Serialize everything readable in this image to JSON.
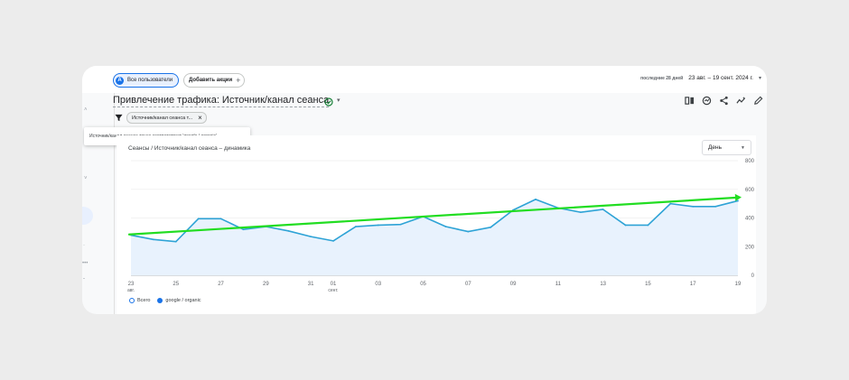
{
  "topbar": {
    "segment_badge": "A",
    "segment_label": "Все пользователи",
    "add_comparison_label": "Добавить акции",
    "date_prefix": "последние 28 дней",
    "date_range": "23 авг. – 19 сент. 2024 г."
  },
  "report": {
    "title": "Привлечение трафика: Источник/канал сеанса",
    "filter_chip": "Источник/канал сеанса т...",
    "filter_tooltip": "Источник/канал сеанса точно соответствует 'google / organic'"
  },
  "chart_card": {
    "title": "Сеансы / Источник/канал сеанса – динамика",
    "granularity": "День"
  },
  "chart_data": {
    "type": "line",
    "x_labels": [
      {
        "i": 0,
        "day": "23",
        "month": "авг."
      },
      {
        "i": 2,
        "day": "25",
        "month": ""
      },
      {
        "i": 4,
        "day": "27",
        "month": ""
      },
      {
        "i": 6,
        "day": "29",
        "month": ""
      },
      {
        "i": 8,
        "day": "31",
        "month": ""
      },
      {
        "i": 9,
        "day": "01",
        "month": "сент."
      },
      {
        "i": 11,
        "day": "03",
        "month": ""
      },
      {
        "i": 13,
        "day": "05",
        "month": ""
      },
      {
        "i": 15,
        "day": "07",
        "month": ""
      },
      {
        "i": 17,
        "day": "09",
        "month": ""
      },
      {
        "i": 19,
        "day": "11",
        "month": ""
      },
      {
        "i": 21,
        "day": "13",
        "month": ""
      },
      {
        "i": 23,
        "day": "15",
        "month": ""
      },
      {
        "i": 25,
        "day": "17",
        "month": ""
      },
      {
        "i": 27,
        "day": "19",
        "month": ""
      }
    ],
    "ylim": [
      0,
      800
    ],
    "yticks": [
      0,
      200,
      400,
      600,
      800
    ],
    "series": [
      {
        "name": "Всего",
        "values": [
          280,
          250,
          235,
          395,
          395,
          320,
          340,
          310,
          270,
          240,
          340,
          350,
          355,
          410,
          340,
          305,
          335,
          455,
          530,
          470,
          440,
          460,
          350,
          350,
          500,
          480,
          480,
          520
        ]
      },
      {
        "name": "google / organic",
        "values": [
          280,
          250,
          235,
          395,
          395,
          320,
          340,
          310,
          270,
          240,
          340,
          350,
          355,
          410,
          340,
          305,
          335,
          455,
          530,
          470,
          440,
          460,
          350,
          350,
          500,
          480,
          480,
          520
        ]
      }
    ],
    "trend": {
      "start": 285,
      "end": 545,
      "color": "#22dd22"
    },
    "grid": true,
    "legend_position": "bottom-left"
  },
  "colors": {
    "accent": "#1a73e8",
    "line": "#2ea3d6",
    "area": "#e8f2fd"
  }
}
